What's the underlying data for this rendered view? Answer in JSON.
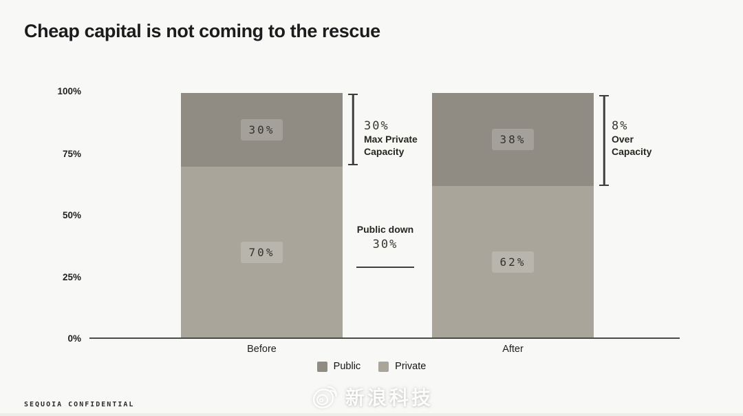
{
  "title": "Cheap capital is not coming to the rescue",
  "chart_data": {
    "type": "bar",
    "stacked": true,
    "title": "Cheap capital is not coming to the rescue",
    "categories": [
      "Before",
      "After"
    ],
    "series": [
      {
        "name": "Public",
        "values": [
          30,
          38
        ],
        "display": [
          "30%",
          "38%"
        ],
        "color": "#908c84"
      },
      {
        "name": "Private",
        "values": [
          70,
          62
        ],
        "display": [
          "70%",
          "62%"
        ],
        "color": "#a9a59b"
      }
    ],
    "xlabel": "",
    "ylabel": "",
    "ylim": [
      0,
      100
    ],
    "yticks": [
      "100%",
      "75%",
      "50%",
      "25%",
      "0%"
    ],
    "grid": false,
    "legend_position": "bottom",
    "annotations": [
      {
        "bar": "Before",
        "value": "30%",
        "lines": [
          "Max Private",
          "Capacity"
        ],
        "meaning": "30% Max Private Capacity bracket over Public segment of Before bar"
      },
      {
        "bar": null,
        "lines": [
          "Public down",
          "30%"
        ],
        "meaning": "Public down 30% note between bars, underlined"
      },
      {
        "bar": "After",
        "value": "8%",
        "lines": [
          "Over",
          "Capacity"
        ],
        "meaning": "8% Over Capacity bracket over Public segment of After bar"
      }
    ]
  },
  "legend": {
    "items": [
      {
        "label": "Public"
      },
      {
        "label": "Private"
      }
    ]
  },
  "footer": {
    "confidential_label": "SEQUOIA CONFIDENTIAL"
  },
  "watermark": {
    "text": "新浪科技",
    "logo": "weibo-eye-icon"
  },
  "colors": {
    "public": "#908c84",
    "private": "#a9a59b",
    "axis": "#4b4a45",
    "background": "#f8f8f6"
  }
}
